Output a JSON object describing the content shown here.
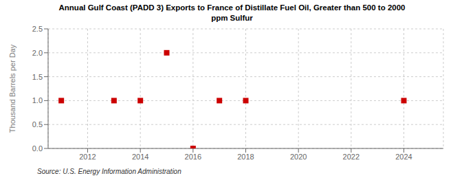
{
  "chart_data": {
    "type": "scatter",
    "title": "Annual Gulf Coast (PADD 3) Exports to France of Distillate Fuel Oil, Greater than 500 to 2000\nppm Sulfur",
    "ylabel": "Thousand Barrels per Day",
    "annotations": [
      "Source: U.S. Energy Information Administration"
    ],
    "x": [
      2011,
      2013,
      2014,
      2015,
      2016,
      2017,
      2018,
      2024
    ],
    "values": [
      1.0,
      1.0,
      1.0,
      2.0,
      0.0,
      1.0,
      1.0,
      1.0
    ],
    "color": "#cc0000",
    "marker": "square",
    "xlim": [
      2010.5,
      2025.5
    ],
    "ylim": [
      0.0,
      2.5
    ],
    "xticks": [
      2012,
      2014,
      2016,
      2018,
      2020,
      2022,
      2024
    ],
    "yticks": [
      {
        "value": 0,
        "label": "0.0"
      },
      0.5,
      {
        "value": 1,
        "label": "1.0"
      },
      1.5,
      {
        "value": 2,
        "label": "2.0"
      },
      2.5
    ],
    "grid": true
  }
}
